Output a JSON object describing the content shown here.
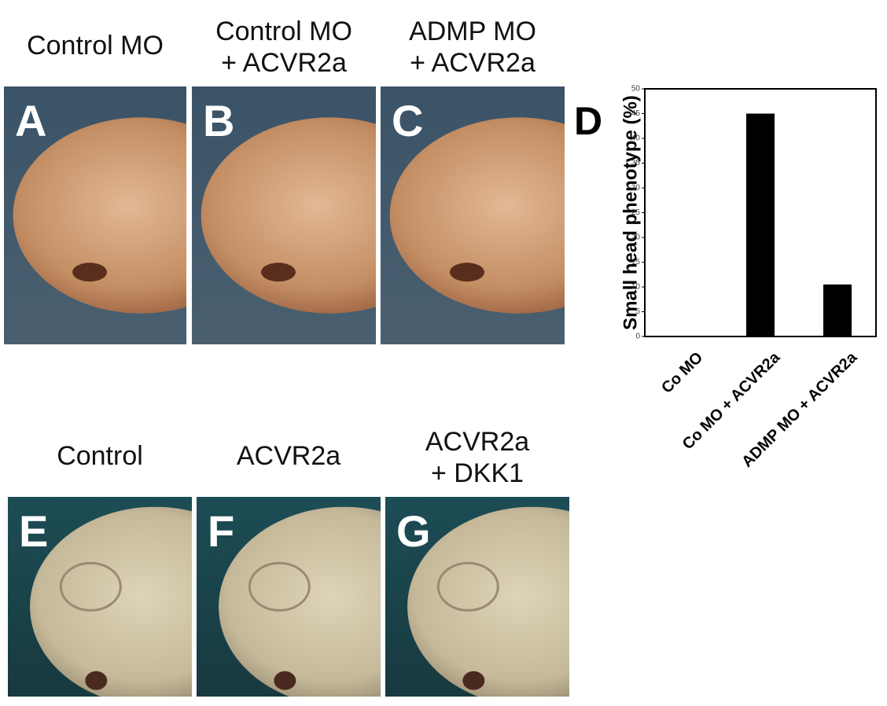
{
  "panels": [
    {
      "label": "A",
      "caption": [
        "Control MO"
      ]
    },
    {
      "label": "B",
      "caption": [
        "Control MO",
        "+ ACVR2a"
      ]
    },
    {
      "label": "C",
      "caption": [
        "ADMP MO",
        "+ ACVR2a"
      ]
    },
    {
      "label": "E",
      "caption": [
        "Control"
      ]
    },
    {
      "label": "F",
      "caption": [
        "ACVR2a"
      ]
    },
    {
      "label": "G",
      "caption": [
        "ACVR2a",
        "+ DKK1"
      ]
    }
  ],
  "chart_data": {
    "type": "bar",
    "panel_label": "D",
    "y_label": "Small head phenotype (%)",
    "categories": [
      "Co MO",
      "Co MO + ACVR2a",
      "ADMP MO + ACVR2a"
    ],
    "values": [
      0,
      45,
      10.5
    ],
    "color": "#000000",
    "ylim": [
      0,
      50
    ],
    "yticks": [
      0,
      5,
      10,
      15,
      20,
      25,
      30,
      35,
      40,
      45,
      50
    ],
    "grid": false
  }
}
